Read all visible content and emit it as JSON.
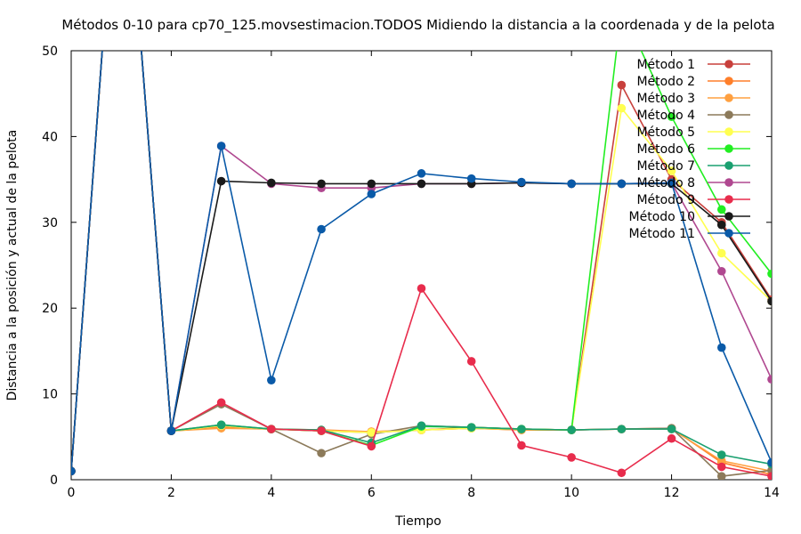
{
  "chart_data": {
    "type": "line",
    "title": "Métodos 0-10 para cp70_125.movsestimacion.TODOS Midiendo la distancia a la coordenada y de la pelota",
    "xlabel": "Tiempo",
    "ylabel": "Distancia a la posición y actual de la pelota",
    "xlim": [
      0,
      14
    ],
    "ylim": [
      0,
      50
    ],
    "x_ticks": [
      "0",
      "2",
      "4",
      "6",
      "8",
      "10",
      "12",
      "14"
    ],
    "y_ticks": [
      "0",
      "10",
      "20",
      "30",
      "40",
      "50"
    ],
    "grid": false,
    "legend_position": "top-right",
    "x": [
      0,
      1,
      2,
      3,
      4,
      5,
      6,
      7,
      8,
      9,
      10,
      11,
      12,
      13,
      14
    ],
    "series": [
      {
        "name": "Método 1",
        "color": "#c8403c",
        "values": [
          1,
          80,
          5.7,
          6.2,
          5.9,
          5.7,
          5.5,
          5.8,
          6.1,
          5.9,
          5.8,
          46,
          35,
          30,
          21
        ]
      },
      {
        "name": "Método 2",
        "color": "#ff7f2a",
        "values": [
          1,
          80,
          5.7,
          6.1,
          5.9,
          5.8,
          5.6,
          5.8,
          6.0,
          5.8,
          5.8,
          5.9,
          6.0,
          2.0,
          0.6
        ]
      },
      {
        "name": "Método 3",
        "color": "#ffa040",
        "values": [
          1,
          80,
          5.7,
          6.0,
          5.9,
          5.7,
          5.6,
          5.8,
          6.0,
          5.8,
          5.8,
          5.9,
          5.9,
          2.2,
          1.0
        ]
      },
      {
        "name": "Método 4",
        "color": "#8c7a5a",
        "values": [
          1,
          80,
          5.7,
          8.8,
          5.9,
          3.1,
          5.3,
          6.3,
          6.1,
          5.9,
          5.8,
          5.9,
          6.0,
          0.4,
          1.1
        ]
      },
      {
        "name": "Método 5",
        "color": "#ffff50",
        "values": [
          1,
          80,
          5.7,
          6.3,
          5.9,
          5.7,
          5.5,
          5.8,
          6.0,
          5.9,
          5.8,
          43.3,
          36,
          26.4,
          20.8
        ]
      },
      {
        "name": "Método 6",
        "color": "#22ee22",
        "values": [
          1,
          80,
          5.7,
          6.4,
          5.9,
          5.7,
          4.0,
          6.2,
          6.1,
          5.9,
          5.8,
          55,
          42.3,
          31.5,
          24
        ]
      },
      {
        "name": "Método 7",
        "color": "#1aa070",
        "values": [
          1,
          80,
          5.7,
          6.4,
          5.9,
          5.8,
          4.3,
          6.3,
          6.1,
          5.9,
          5.8,
          5.9,
          5.9,
          2.9,
          1.8
        ]
      },
      {
        "name": "Método 8",
        "color": "#b04890",
        "values": [
          1,
          80,
          5.7,
          38.9,
          34.5,
          34.0,
          34.0,
          34.5,
          34.5,
          34.6,
          34.5,
          34.5,
          34.6,
          24.3,
          11.7
        ]
      },
      {
        "name": "Método 9",
        "color": "#e82c4c",
        "values": [
          1,
          80,
          5.7,
          9.0,
          5.9,
          5.7,
          3.9,
          22.3,
          13.8,
          4.0,
          2.6,
          0.8,
          4.8,
          1.5,
          0.4
        ]
      },
      {
        "name": "Método 10",
        "color": "#1a1a1a",
        "values": [
          1,
          80,
          5.7,
          34.8,
          34.6,
          34.5,
          34.5,
          34.5,
          34.5,
          34.6,
          34.5,
          34.5,
          34.5,
          29.7,
          20.8
        ]
      },
      {
        "name": "Método 11",
        "color": "#0a5aa8",
        "values": [
          1,
          80,
          5.7,
          38.9,
          11.6,
          29.2,
          33.3,
          35.7,
          35.1,
          34.7,
          34.5,
          34.5,
          34.6,
          15.4,
          2.0
        ]
      }
    ]
  }
}
